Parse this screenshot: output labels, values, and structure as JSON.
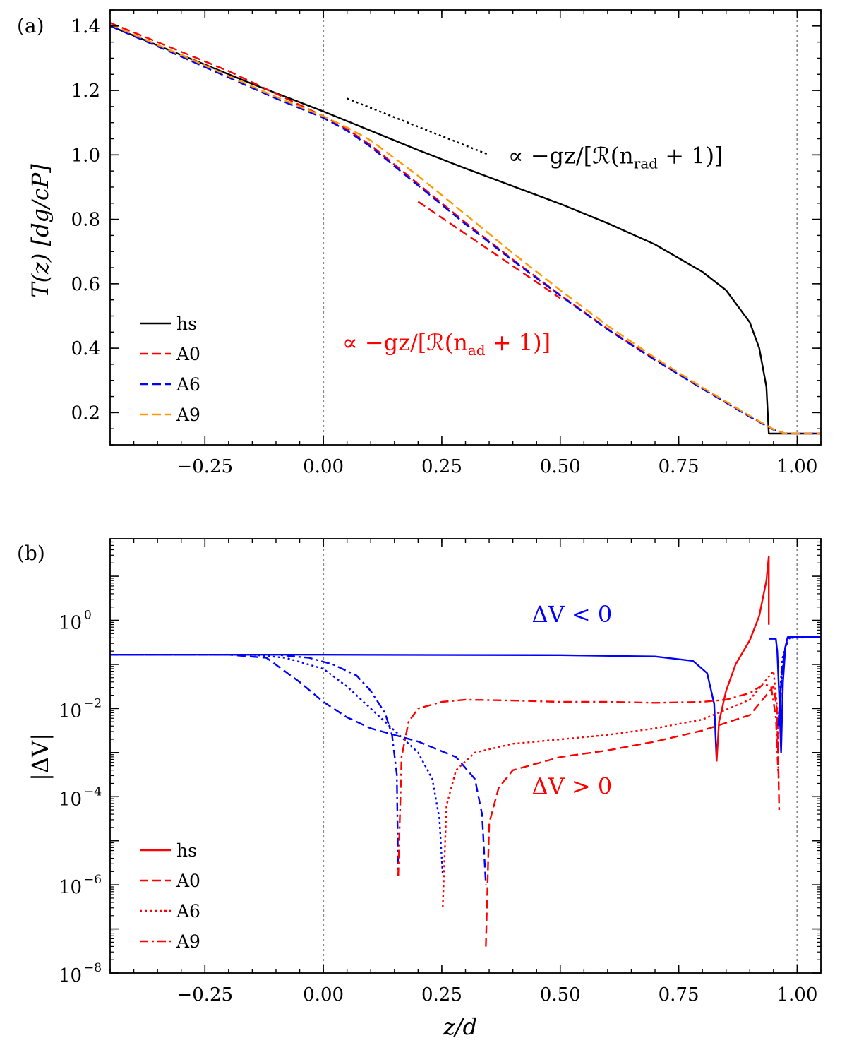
{
  "chart_data": [
    {
      "panel_label": "(a)",
      "type": "line",
      "title": "",
      "xlabel": "",
      "ylabel": "T(z) [dg/cP]",
      "xlim": [
        -0.45,
        1.05
      ],
      "ylim": [
        0.1,
        1.45
      ],
      "yscale": "linear",
      "xticks": [
        -0.25,
        0.0,
        0.25,
        0.5,
        0.75,
        1.0
      ],
      "xtick_labels": [
        "−0.25",
        "0.00",
        "0.25",
        "0.50",
        "0.75",
        "1.00"
      ],
      "yticks": [
        0.2,
        0.4,
        0.6,
        0.8,
        1.0,
        1.2,
        1.4
      ],
      "ytick_labels": [
        "0.2",
        "0.4",
        "0.6",
        "0.8",
        "1.0",
        "1.2",
        "1.4"
      ],
      "vlines": [
        0.0,
        1.0
      ],
      "legend": {
        "placement": "lower-left",
        "entries": [
          "hs",
          "A0",
          "A6",
          "A9"
        ]
      },
      "series": [
        {
          "name": "hs",
          "color": "#000000",
          "style": "solid",
          "x": [
            -0.45,
            -0.3,
            -0.15,
            0.0,
            0.1,
            0.2,
            0.3,
            0.4,
            0.5,
            0.6,
            0.7,
            0.8,
            0.85,
            0.9,
            0.92,
            0.935,
            0.94,
            0.94,
            1.05
          ],
          "y": [
            1.4,
            1.31,
            1.22,
            1.135,
            1.075,
            1.015,
            0.958,
            0.903,
            0.848,
            0.788,
            0.722,
            0.637,
            0.58,
            0.48,
            0.4,
            0.28,
            0.135,
            0.135,
            0.135
          ]
        },
        {
          "name": "A0",
          "color": "#ff0000",
          "style": "dashed",
          "x": [
            -0.45,
            -0.3,
            -0.2,
            -0.1,
            0.0,
            0.05,
            0.1,
            0.2,
            0.3,
            0.4,
            0.5,
            0.6,
            0.7,
            0.8,
            0.9,
            0.95,
            0.975,
            1.05
          ],
          "y": [
            1.41,
            1.32,
            1.26,
            1.19,
            1.12,
            1.08,
            1.03,
            0.91,
            0.79,
            0.675,
            0.565,
            0.46,
            0.365,
            0.275,
            0.188,
            0.148,
            0.135,
            0.135
          ]
        },
        {
          "name": "A6",
          "color": "#0000ff",
          "style": "dashed",
          "x": [
            -0.45,
            -0.3,
            -0.2,
            -0.1,
            0.0,
            0.05,
            0.1,
            0.2,
            0.3,
            0.4,
            0.5,
            0.6,
            0.7,
            0.8,
            0.9,
            0.95,
            0.975,
            1.05
          ],
          "y": [
            1.4,
            1.305,
            1.24,
            1.175,
            1.115,
            1.075,
            1.025,
            0.905,
            0.785,
            0.672,
            0.563,
            0.458,
            0.363,
            0.274,
            0.187,
            0.147,
            0.135,
            0.135
          ]
        },
        {
          "name": "A9",
          "color": "#ff9900",
          "style": "dashed",
          "x": [
            -0.45,
            -0.3,
            -0.2,
            -0.1,
            0.0,
            0.05,
            0.1,
            0.2,
            0.3,
            0.4,
            0.5,
            0.6,
            0.7,
            0.8,
            0.9,
            0.95,
            0.975,
            1.05
          ],
          "y": [
            1.405,
            1.31,
            1.245,
            1.18,
            1.12,
            1.085,
            1.045,
            0.935,
            0.815,
            0.695,
            0.58,
            0.47,
            0.37,
            0.278,
            0.19,
            0.148,
            0.135,
            0.135
          ]
        }
      ],
      "reference_lines": [
        {
          "name": "radiative-slope",
          "color": "#000000",
          "style": "dotted",
          "x": [
            0.05,
            0.35
          ],
          "y": [
            1.175,
            1.0
          ]
        },
        {
          "name": "adiabatic-slope",
          "color": "#ff0000",
          "style": "dashed",
          "x": [
            0.2,
            0.5
          ],
          "y": [
            0.855,
            0.555
          ]
        }
      ],
      "annotations": [
        {
          "name": "radiative",
          "text_prefix": "∝ −gz/[ℛ(n",
          "text_sub": "rad",
          "text_suffix": " + 1)]",
          "color": "#000000",
          "x": 0.39,
          "y": 1.0
        },
        {
          "name": "adiabatic",
          "text_prefix": "∝ −gz/[ℛ(n",
          "text_sub": "ad",
          "text_suffix": " + 1)]",
          "color": "#ff0000",
          "x": 0.04,
          "y": 0.42
        }
      ]
    },
    {
      "panel_label": "(b)",
      "type": "line",
      "title": "",
      "xlabel": "z/d",
      "ylabel": "|ΔV|",
      "xlim": [
        -0.45,
        1.05
      ],
      "ylim_log10": [
        -8.0,
        1.85
      ],
      "yscale": "log",
      "xticks": [
        -0.25,
        0.0,
        0.25,
        0.5,
        0.75,
        1.0
      ],
      "xtick_labels": [
        "−0.25",
        "0.00",
        "0.25",
        "0.50",
        "0.75",
        "1.00"
      ],
      "yticks_log10": [
        -8,
        -6,
        -4,
        -2,
        0
      ],
      "ytick_exponents": [
        "−8",
        "−6",
        "−4",
        "−2",
        "0"
      ],
      "ytick_base": "10",
      "vlines": [
        0.0,
        1.0
      ],
      "legend": {
        "placement": "lower-left",
        "entries": [
          "hs",
          "A0",
          "A6",
          "A9"
        ]
      },
      "region_labels": [
        {
          "text": "ΔV < 0",
          "color": "#0000ff",
          "x": 0.44,
          "log10y": 0.15
        },
        {
          "text": "ΔV > 0",
          "color": "#ff0000",
          "x": 0.44,
          "log10y": -3.75
        }
      ],
      "series": [
        {
          "name": "hs",
          "style": "solid",
          "segments": [
            {
              "color": "#0000ff",
              "x": [
                -0.45,
                0.0,
                0.5,
                0.7,
                0.78,
                0.81,
                0.825,
                0.83
              ],
              "log10y": [
                -0.78,
                -0.78,
                -0.79,
                -0.82,
                -0.92,
                -1.2,
                -1.9,
                -3.2
              ]
            },
            {
              "color": "#ff0000",
              "x": [
                0.83,
                0.835,
                0.85,
                0.87,
                0.9,
                0.92,
                0.935,
                0.94,
                0.94
              ],
              "log10y": [
                -3.2,
                -2.3,
                -1.6,
                -1.0,
                -0.45,
                0.1,
                0.9,
                1.45,
                -0.1
              ]
            },
            {
              "color": "#0000ff",
              "x": [
                0.94,
                0.955,
                0.958,
                0.962,
                0.966,
                0.97,
                0.975,
                0.98,
                1.05
              ],
              "log10y": [
                -0.42,
                -0.42,
                -0.7,
                -1.7,
                -3.0,
                -1.4,
                -0.6,
                -0.38,
                -0.38
              ]
            }
          ]
        },
        {
          "name": "A0",
          "style": "dashed",
          "segments": [
            {
              "color": "#0000ff",
              "x": [
                -0.45,
                -0.2,
                -0.12,
                -0.05,
                0.0,
                0.05,
                0.1,
                0.2,
                0.28,
                0.32,
                0.335,
                0.343
              ],
              "log10y": [
                -0.78,
                -0.78,
                -0.85,
                -1.4,
                -1.85,
                -2.2,
                -2.45,
                -2.75,
                -3.1,
                -3.6,
                -4.4,
                -6.0
              ]
            },
            {
              "color": "#ff0000",
              "x": [
                0.343,
                0.35,
                0.37,
                0.4,
                0.5,
                0.6,
                0.7,
                0.8,
                0.9,
                0.95,
                0.957,
                0.96,
                0.962
              ],
              "log10y": [
                -7.4,
                -4.6,
                -3.8,
                -3.4,
                -3.1,
                -2.95,
                -2.75,
                -2.5,
                -2.15,
                -1.5,
                -2.0,
                -3.2,
                -4.3
              ]
            },
            {
              "color": "#0000ff",
              "x": [
                0.962,
                0.968,
                0.975,
                0.985,
                1.05
              ],
              "log10y": [
                -2.4,
                -1.1,
                -0.6,
                -0.38,
                -0.38
              ]
            }
          ]
        },
        {
          "name": "A6",
          "style": "dotted",
          "segments": [
            {
              "color": "#0000ff",
              "x": [
                -0.45,
                -0.15,
                -0.08,
                0.0,
                0.05,
                0.1,
                0.15,
                0.2,
                0.23,
                0.245,
                0.252
              ],
              "log10y": [
                -0.78,
                -0.78,
                -0.85,
                -1.1,
                -1.5,
                -2.0,
                -2.5,
                -3.0,
                -3.6,
                -4.5,
                -5.8
              ]
            },
            {
              "color": "#ff0000",
              "x": [
                0.252,
                0.26,
                0.28,
                0.32,
                0.4,
                0.5,
                0.6,
                0.7,
                0.8,
                0.9,
                0.95,
                0.958,
                0.961
              ],
              "log10y": [
                -6.5,
                -4.2,
                -3.4,
                -3.0,
                -2.8,
                -2.7,
                -2.6,
                -2.45,
                -2.25,
                -1.8,
                -1.15,
                -2.0,
                -3.8
              ]
            },
            {
              "color": "#0000ff",
              "x": [
                0.961,
                0.968,
                0.98,
                1.05
              ],
              "log10y": [
                -2.2,
                -0.9,
                -0.4,
                -0.38
              ]
            }
          ]
        },
        {
          "name": "A9",
          "style": "dashdot",
          "segments": [
            {
              "color": "#0000ff",
              "x": [
                -0.45,
                -0.1,
                -0.03,
                0.02,
                0.07,
                0.1,
                0.13,
                0.145,
                0.155,
                0.158
              ],
              "log10y": [
                -0.78,
                -0.78,
                -0.85,
                -1.0,
                -1.25,
                -1.6,
                -2.1,
                -2.6,
                -3.5,
                -5.8
              ]
            },
            {
              "color": "#ff0000",
              "x": [
                0.158,
                0.165,
                0.18,
                0.2,
                0.25,
                0.3,
                0.4,
                0.5,
                0.6,
                0.7,
                0.8,
                0.85,
                0.9,
                0.93,
                0.945,
                0.955,
                0.96
              ],
              "log10y": [
                -5.8,
                -3.1,
                -2.3,
                -2.0,
                -1.85,
                -1.8,
                -1.82,
                -1.85,
                -1.85,
                -1.87,
                -1.85,
                -1.8,
                -1.65,
                -1.45,
                -1.5,
                -2.2,
                -3.5
              ]
            },
            {
              "color": "#0000ff",
              "x": [
                0.96,
                0.967,
                0.975,
                0.985,
                1.05
              ],
              "log10y": [
                -2.4,
                -1.3,
                -0.6,
                -0.38,
                -0.38
              ]
            }
          ]
        }
      ]
    }
  ]
}
